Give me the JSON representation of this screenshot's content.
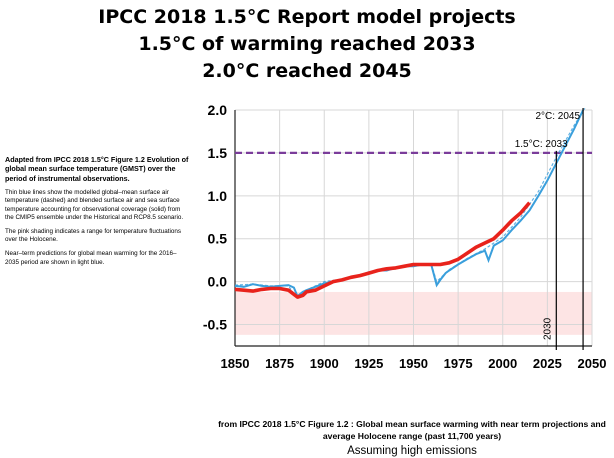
{
  "title_lines": [
    "IPCC 2018 1.5°C Report model projects",
    "1.5°C of warming reached 2033",
    "2.0°C reached 2045"
  ],
  "side_text": {
    "heading": "Adapted from IPCC 2018 1.5°C Figure 1.2 Evolution of global mean surface temperature (GMST) over the period of instrumental observations.",
    "p1": "Thin blue lines show the modelled global–mean surface air temperature (dashed) and blended surface air and sea surface temperature accounting for observational coverage (solid) from the CMIP5 ensemble under the Historical and RCP8.5 scenario.",
    "p2": "The pink shading indicates a range for temperature fluctuations over the Holocene.",
    "p3": "Near–term predictions for global mean warming for the 2016–2035 period are shown in light blue."
  },
  "caption": "from IPCC 2018 1.5°C Figure 1.2 :  Global mean surface warming with near term projections and average Holocene range (past 11,700 years)",
  "cut_text": "Assuming high emissions",
  "chart_data": {
    "type": "line",
    "xlim": [
      1850,
      2050
    ],
    "ylim": [
      -0.75,
      2.0
    ],
    "x_ticks": [
      1850,
      1875,
      1900,
      1925,
      1950,
      1975,
      2000,
      2025,
      2050
    ],
    "y_ticks": [
      2.0,
      1.5,
      1.0,
      0.5,
      0.0,
      -0.5
    ],
    "y_tick_labels": [
      "2.0",
      "1.5",
      "1.0",
      "0.5",
      "0.0",
      "-0.5"
    ],
    "grid": true,
    "holocene_band": [
      -0.62,
      -0.12
    ],
    "threshold": {
      "y": 1.5,
      "label": "1.5°C: 2033"
    },
    "marker_2c": {
      "x": 2045,
      "y": 2.0,
      "label": "2°C: 2045"
    },
    "marker_2030": {
      "x": 2030,
      "label": "2030"
    },
    "colors": {
      "observed": "#e8231c",
      "model": "#3a9fdc",
      "threshold": "#7a3c9a",
      "holocene": "#fde4e4",
      "grid": "#d7d7d7",
      "vline": "#000000"
    },
    "series": [
      {
        "role": "model",
        "x": [
          1850,
          1855,
          1860,
          1865,
          1870,
          1875,
          1880,
          1883,
          1885,
          1888,
          1890,
          1895,
          1900,
          1905,
          1910,
          1915,
          1920,
          1925,
          1930,
          1935,
          1940,
          1945,
          1950,
          1955,
          1960,
          1963,
          1965,
          1968,
          1970,
          1975,
          1980,
          1985,
          1990,
          1992,
          1995,
          2000,
          2005,
          2010,
          2015,
          2020,
          2025,
          2030,
          2035,
          2040,
          2045
        ],
        "y": [
          -0.05,
          -0.06,
          -0.03,
          -0.05,
          -0.06,
          -0.05,
          -0.04,
          -0.07,
          -0.17,
          -0.12,
          -0.1,
          -0.06,
          -0.02,
          0.0,
          0.02,
          0.05,
          0.07,
          0.11,
          0.13,
          0.13,
          0.16,
          0.18,
          0.18,
          0.2,
          0.19,
          -0.04,
          0.02,
          0.1,
          0.13,
          0.2,
          0.26,
          0.32,
          0.36,
          0.25,
          0.42,
          0.48,
          0.6,
          0.71,
          0.83,
          1.0,
          1.18,
          1.38,
          1.58,
          1.78,
          2.0
        ]
      },
      {
        "role": "model_dashed",
        "x": [
          1850,
          1860,
          1870,
          1880,
          1885,
          1890,
          1900,
          1910,
          1920,
          1930,
          1940,
          1950,
          1960,
          1963,
          1970,
          1980,
          1990,
          2000,
          2010,
          2020,
          2030,
          2040,
          2046
        ],
        "y": [
          -0.04,
          -0.03,
          -0.05,
          -0.05,
          -0.2,
          -0.1,
          0.0,
          0.03,
          0.08,
          0.13,
          0.16,
          0.19,
          0.2,
          0.0,
          0.14,
          0.27,
          0.38,
          0.52,
          0.75,
          1.05,
          1.45,
          1.82,
          2.02
        ]
      },
      {
        "role": "observed",
        "x": [
          1850,
          1855,
          1860,
          1865,
          1870,
          1875,
          1880,
          1885,
          1888,
          1890,
          1895,
          1900,
          1905,
          1910,
          1915,
          1920,
          1925,
          1930,
          1935,
          1940,
          1945,
          1950,
          1955,
          1960,
          1965,
          1970,
          1975,
          1980,
          1985,
          1990,
          1995,
          2000,
          2005,
          2010,
          2015
        ],
        "y": [
          -0.09,
          -0.1,
          -0.11,
          -0.09,
          -0.08,
          -0.08,
          -0.1,
          -0.18,
          -0.16,
          -0.12,
          -0.1,
          -0.05,
          0.0,
          0.02,
          0.05,
          0.07,
          0.1,
          0.13,
          0.15,
          0.16,
          0.18,
          0.2,
          0.2,
          0.2,
          0.2,
          0.22,
          0.26,
          0.33,
          0.4,
          0.45,
          0.5,
          0.6,
          0.71,
          0.8,
          0.92
        ]
      }
    ]
  }
}
